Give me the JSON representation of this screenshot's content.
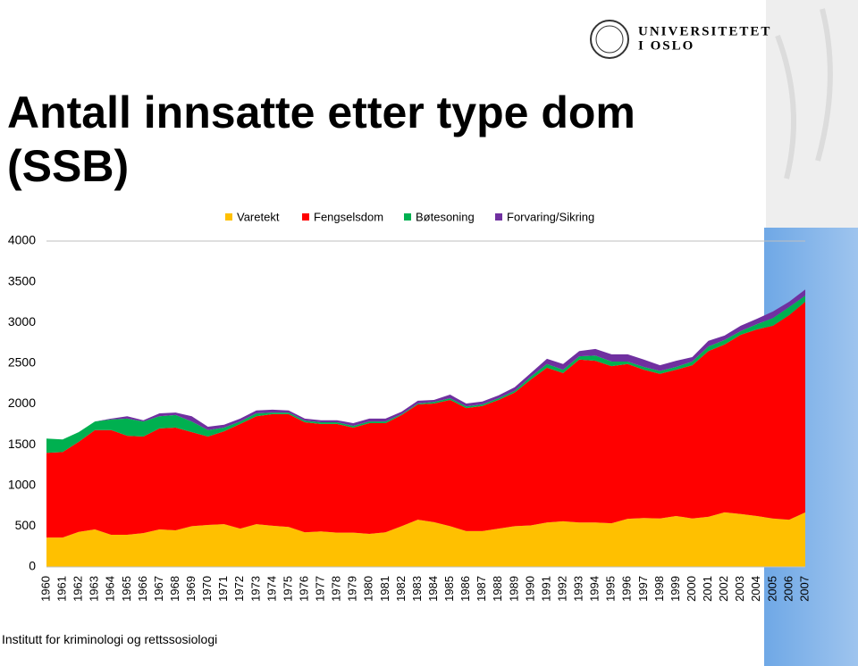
{
  "slide": {
    "logo_lines": [
      "UNIVERSITETET",
      "I OSLO"
    ],
    "footer": "Institutt for kriminologi og rettssosiologi"
  },
  "chart_data": {
    "type": "stacked_area",
    "title": "Antall innsatte etter type dom (SSB)",
    "categories": [
      "1960",
      "1961",
      "1962",
      "1963",
      "1964",
      "1965",
      "1966",
      "1967",
      "1968",
      "1969",
      "1970",
      "1971",
      "1972",
      "1973",
      "1974",
      "1975",
      "1976",
      "1977",
      "1978",
      "1979",
      "1980",
      "1981",
      "1982",
      "1983",
      "1984",
      "1985",
      "1986",
      "1987",
      "1988",
      "1989",
      "1990",
      "1991",
      "1992",
      "1993",
      "1994",
      "1995",
      "1996",
      "1997",
      "1998",
      "1999",
      "2000",
      "2001",
      "2002",
      "2003",
      "2004",
      "2005",
      "2006",
      "2007"
    ],
    "series": [
      {
        "name": "Varetekt",
        "color": "#FFC000",
        "values": [
          360,
          360,
          430,
          460,
          395,
          395,
          415,
          460,
          450,
          500,
          515,
          525,
          470,
          525,
          505,
          490,
          425,
          435,
          420,
          420,
          405,
          425,
          500,
          580,
          550,
          500,
          440,
          440,
          470,
          500,
          510,
          545,
          560,
          545,
          545,
          535,
          590,
          600,
          595,
          625,
          595,
          615,
          670,
          650,
          625,
          595,
          580,
          670
        ]
      },
      {
        "name": "Fengselsdom",
        "color": "#FF0000",
        "values": [
          1040,
          1050,
          1105,
          1220,
          1285,
          1215,
          1185,
          1240,
          1260,
          1155,
          1085,
          1140,
          1285,
          1325,
          1370,
          1385,
          1350,
          1320,
          1335,
          1290,
          1360,
          1340,
          1365,
          1415,
          1455,
          1550,
          1510,
          1535,
          1580,
          1640,
          1790,
          1900,
          1820,
          2000,
          1985,
          1930,
          1900,
          1820,
          1775,
          1795,
          1880,
          2035,
          2060,
          2200,
          2290,
          2365,
          2510,
          2585
        ]
      },
      {
        "name": "Bøtesoning",
        "color": "#00B050",
        "values": [
          175,
          155,
          120,
          105,
          130,
          210,
          185,
          150,
          155,
          130,
          80,
          45,
          30,
          35,
          20,
          20,
          20,
          20,
          20,
          20,
          20,
          20,
          10,
          10,
          20,
          20,
          20,
          20,
          20,
          20,
          35,
          45,
          40,
          40,
          65,
          55,
          30,
          35,
          35,
          35,
          45,
          55,
          55,
          45,
          65,
          95,
          100,
          75
        ]
      },
      {
        "name": "Forvaring/Sikring",
        "color": "#7030A0",
        "values": [
          0,
          0,
          0,
          0,
          10,
          30,
          15,
          35,
          30,
          65,
          40,
          35,
          35,
          35,
          35,
          25,
          25,
          25,
          25,
          35,
          35,
          35,
          30,
          35,
          25,
          45,
          35,
          35,
          35,
          45,
          45,
          65,
          70,
          65,
          80,
          90,
          90,
          90,
          70,
          75,
          55,
          70,
          55,
          65,
          65,
          80,
          65,
          75
        ]
      }
    ],
    "ylim": [
      0,
      4000
    ],
    "yticks": [
      0,
      500,
      1000,
      1500,
      2000,
      2500,
      3000,
      3500,
      4000
    ],
    "grid": false,
    "legend": "top"
  }
}
